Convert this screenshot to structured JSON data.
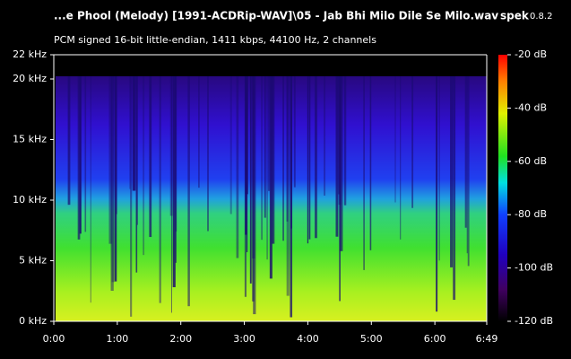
{
  "chart_data": {
    "type": "spectrogram",
    "title": "...e Phool (Melody) [1991-ACDRip-WAV]\\05 - Jab Bhi Milo Dile Se Milo.wav",
    "app_name": "spek",
    "app_version": "0.8.2",
    "subtitle": "PCM signed 16-bit little-endian, 1411 kbps, 44100 Hz, 2 channels",
    "xlim": [
      0,
      409
    ],
    "xticks": [
      {
        "value": 0,
        "label": "0:00"
      },
      {
        "value": 60,
        "label": "1:00"
      },
      {
        "value": 120,
        "label": "2:00"
      },
      {
        "value": 180,
        "label": "3:00"
      },
      {
        "value": 240,
        "label": "4:00"
      },
      {
        "value": 300,
        "label": "5:00"
      },
      {
        "value": 360,
        "label": "6:00"
      },
      {
        "value": 409,
        "label": "6:49"
      }
    ],
    "ylim": [
      0,
      22
    ],
    "yticks": [
      {
        "value": 0,
        "label": "0 kHz"
      },
      {
        "value": 5,
        "label": "5 kHz"
      },
      {
        "value": 10,
        "label": "10 kHz"
      },
      {
        "value": 15,
        "label": "15 kHz"
      },
      {
        "value": 20,
        "label": "20 kHz"
      },
      {
        "value": 22,
        "label": "22 kHz"
      }
    ],
    "zlim": [
      -120,
      -20
    ],
    "zticks": [
      {
        "value": -20,
        "label": "-20 dB"
      },
      {
        "value": -40,
        "label": "-40 dB"
      },
      {
        "value": -60,
        "label": "-60 dB"
      },
      {
        "value": -80,
        "label": "-80 dB"
      },
      {
        "value": -100,
        "label": "-100 dB"
      },
      {
        "value": -120,
        "label": "-120 dB"
      }
    ]
  }
}
